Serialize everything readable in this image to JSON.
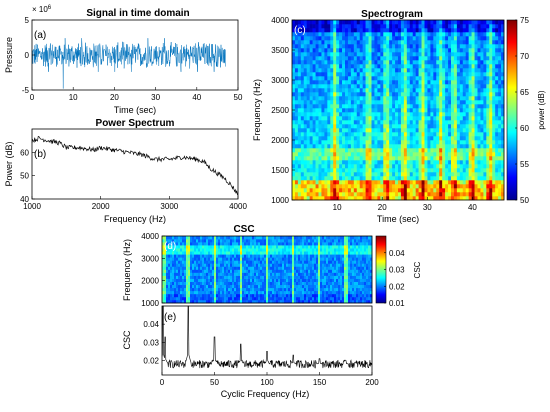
{
  "figure": {
    "panels": [
      {
        "id": "a",
        "type": "line",
        "panel_label": "(a)",
        "title": "Signal in time domain",
        "xlabel": "Time (sec)",
        "ylabel": "Pressure",
        "y_multiplier": "× 10",
        "y_exponent": "6",
        "xlim": [
          0,
          50
        ],
        "ylim": [
          -5,
          5
        ],
        "xticks": [
          "0",
          "10",
          "20",
          "30",
          "40",
          "50"
        ],
        "yticks": [
          "-5",
          "0",
          "5"
        ],
        "xtick_values": [
          0,
          10,
          20,
          30,
          40,
          50
        ],
        "ytick_values": [
          -5,
          0,
          5
        ],
        "signal": {
          "t_range": [
            0,
            47
          ],
          "band": [
            -2,
            2
          ],
          "spike_min": -4.8,
          "color": "#0072BD"
        }
      },
      {
        "id": "b",
        "type": "line",
        "panel_label": "(b)",
        "title": "Power Spectrum",
        "xlabel": "Frequency (Hz)",
        "ylabel": "Power (dB)",
        "xlim": [
          1000,
          4000
        ],
        "ylim": [
          40,
          70
        ],
        "xticks": [
          "1000",
          "2000",
          "3000",
          "4000"
        ],
        "yticks": [
          "40",
          "50",
          "60"
        ],
        "xtick_values": [
          1000,
          2000,
          3000,
          4000
        ],
        "ytick_values": [
          40,
          50,
          60
        ],
        "series": [
          {
            "x": [
              1000,
              1100,
              1250,
              1400,
              1500,
              1700,
              1900,
              2000,
              2200,
              2400,
              2600,
              2800,
              3000,
              3200,
              3400,
              3500,
              3600,
              3700,
              3800,
              3900,
              4000
            ],
            "y": [
              65,
              66,
              65,
              64,
              62,
              62,
              61,
              62,
              61,
              60,
              59,
              57,
              57,
              58,
              57,
              56,
              53,
              51,
              49,
              46,
              42
            ],
            "color": "#000000"
          }
        ]
      },
      {
        "id": "c",
        "type": "heatmap",
        "panel_label": "(c)",
        "title": "Spectrogram",
        "xlabel": "Time (sec)",
        "ylabel": "Frequency (Hz)",
        "xlim": [
          0,
          47
        ],
        "ylim": [
          1000,
          4000
        ],
        "xticks": [
          "10",
          "20",
          "30",
          "40"
        ],
        "yticks": [
          "1000",
          "1500",
          "2000",
          "2500",
          "3000",
          "3500",
          "4000"
        ],
        "xtick_values": [
          10,
          20,
          30,
          40
        ],
        "ytick_values": [
          1000,
          1500,
          2000,
          2500,
          3000,
          3500,
          4000
        ],
        "colorbar": {
          "label": "power (dB)",
          "range": [
            50,
            75
          ],
          "ticks": [
            "50",
            "55",
            "60",
            "65",
            "70",
            "75"
          ],
          "tick_values": [
            50,
            55,
            60,
            65,
            70,
            75
          ]
        },
        "vertical_streaks_sec": [
          9.5,
          17,
          21,
          25,
          29,
          33,
          36,
          40,
          44
        ]
      },
      {
        "id": "d",
        "type": "heatmap",
        "panel_label": "(d)",
        "title": "CSC",
        "xlabel": "",
        "ylabel": "Frequency (Hz)",
        "xlim": [
          0,
          200
        ],
        "ylim": [
          1000,
          4000
        ],
        "xticks": [],
        "yticks": [
          "1000",
          "2000",
          "3000",
          "4000"
        ],
        "ytick_values": [
          1000,
          2000,
          3000,
          4000
        ],
        "colorbar": {
          "label": "CSC",
          "range": [
            0.01,
            0.05
          ],
          "ticks": [
            "0.01",
            "0.02",
            "0.03",
            "0.04"
          ],
          "tick_values": [
            0.01,
            0.02,
            0.03,
            0.04
          ]
        },
        "vertical_streaks_hz": [
          25,
          50,
          75,
          100,
          125,
          150,
          175
        ]
      },
      {
        "id": "e",
        "type": "line",
        "panel_label": "(e)",
        "title": "",
        "xlabel": "Cyclic Frequency (Hz)",
        "ylabel": "CSC",
        "xlim": [
          0,
          200
        ],
        "ylim": [
          0.012,
          0.05
        ],
        "xticks": [
          "0",
          "50",
          "100",
          "150",
          "200"
        ],
        "yticks": [
          "0.02",
          "0.03",
          "0.04"
        ],
        "xtick_values": [
          0,
          50,
          100,
          150,
          200
        ],
        "ytick_values": [
          0.02,
          0.03,
          0.04
        ],
        "baseline": 0.018,
        "peaks": [
          {
            "x": 1,
            "y": 0.05
          },
          {
            "x": 3,
            "y": 0.033
          },
          {
            "x": 25,
            "y": 0.05
          },
          {
            "x": 50,
            "y": 0.033
          },
          {
            "x": 75,
            "y": 0.029
          },
          {
            "x": 100,
            "y": 0.025
          },
          {
            "x": 125,
            "y": 0.023
          },
          {
            "x": 150,
            "y": 0.021
          },
          {
            "x": 175,
            "y": 0.02
          }
        ],
        "color": "#000000"
      }
    ]
  }
}
